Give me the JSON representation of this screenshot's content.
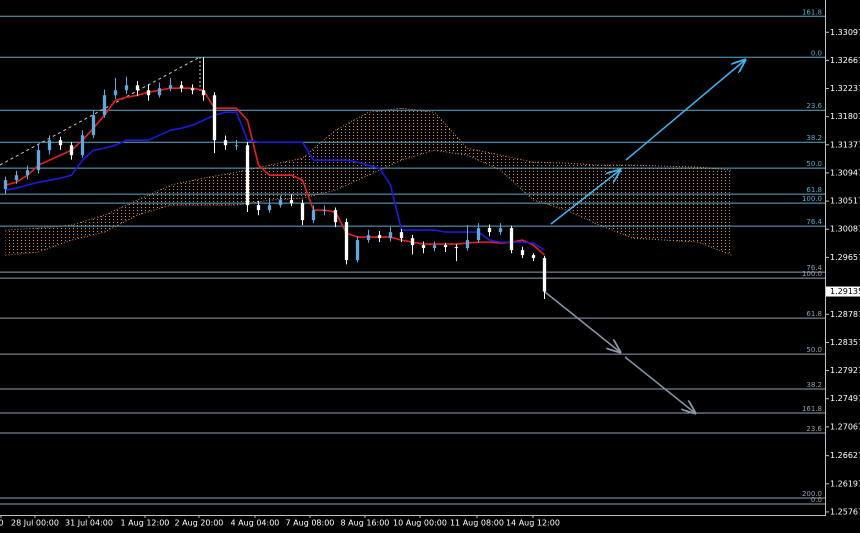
{
  "chart_data": {
    "type": "candlestick",
    "up_color": "#62a8e0",
    "down_color": "#ffffff",
    "xlim": [
      -0.5,
      74.5
    ],
    "ylim": [
      1.2572,
      1.3359
    ],
    "xticks": [
      {
        "value": -0.41,
        "label": "0"
      },
      {
        "value": 2.68,
        "label": "28 Jul 00:00"
      },
      {
        "value": 7.59,
        "label": "31 Jul 04:00"
      },
      {
        "value": 12.68,
        "label": "1 Aug 12:00"
      },
      {
        "value": 17.59,
        "label": "2 Aug 20:00"
      },
      {
        "value": 22.68,
        "label": "4 Aug 04:00"
      },
      {
        "value": 27.68,
        "label": "7 Aug 08:00"
      },
      {
        "value": 32.68,
        "label": "8 Aug 16:00"
      },
      {
        "value": 37.68,
        "label": "10 Aug 00:00"
      },
      {
        "value": 42.86,
        "label": "11 Aug 08:00"
      },
      {
        "value": 47.95,
        "label": "14 Aug 12:00"
      }
    ],
    "yticks": [
      1.33097,
      1.32667,
      1.32237,
      1.31807,
      1.31377,
      1.30947,
      1.30517,
      1.30087,
      1.29657,
      1.28787,
      1.28357,
      1.27927,
      1.27497,
      1.27067,
      1.26627,
      1.26197,
      1.25767
    ],
    "last_price": 1.29135,
    "open": [
      1.307,
      1.30837,
      1.30913,
      1.3099,
      1.31295,
      1.31448,
      1.31371,
      1.31219,
      1.31524,
      1.3183,
      1.32135,
      1.32211,
      1.32288,
      1.32211,
      1.32135,
      1.32242,
      1.32288,
      1.32242,
      1.32211,
      1.32135,
      1.31448,
      1.31371,
      1.31371,
      1.30455,
      1.30379,
      1.30455,
      1.30532,
      1.30486,
      1.30226,
      1.30379,
      1.30379,
      1.30196,
      1.29615,
      1.29921,
      1.29997,
      1.29951,
      1.30043,
      1.29951,
      1.29844,
      1.29799,
      1.29844,
      1.29814,
      1.29799,
      1.29921,
      1.30104,
      1.30043,
      1.30104,
      1.29768,
      1.29692,
      1.29646
    ],
    "high": [
      1.3089,
      1.3098,
      1.3106,
      1.3138,
      1.3152,
      1.315,
      1.3142,
      1.316,
      1.319,
      1.3222,
      1.324,
      1.3242,
      1.3235,
      1.323,
      1.3233,
      1.324,
      1.3235,
      1.323,
      1.32715,
      1.3218,
      1.3152,
      1.3145,
      1.3142,
      1.3052,
      1.3056,
      1.306,
      1.3062,
      1.3054,
      1.3045,
      1.3045,
      1.3042,
      1.3025,
      1.2998,
      1.3008,
      1.3006,
      1.3012,
      1.3009,
      1.3,
      1.299,
      1.299,
      1.2988,
      1.2986,
      1.3015,
      1.3018,
      1.3016,
      1.3018,
      1.3014,
      1.2982,
      1.2972,
      1.2968
    ],
    "low": [
      1.3062,
      1.3078,
      1.3085,
      1.3094,
      1.3123,
      1.313,
      1.3115,
      1.3118,
      1.3148,
      1.3179,
      1.3208,
      1.3215,
      1.3212,
      1.3205,
      1.321,
      1.322,
      1.3218,
      1.3215,
      1.3205,
      1.3125,
      1.313,
      1.313,
      1.3035,
      1.303,
      1.3034,
      1.3042,
      1.3044,
      1.3015,
      1.3018,
      1.303,
      1.3012,
      1.2955,
      1.2958,
      1.2988,
      1.2989,
      1.299,
      1.2989,
      1.297,
      1.2972,
      1.2975,
      1.2974,
      1.296,
      1.2976,
      1.2988,
      1.2998,
      1.3,
      1.2972,
      1.2965,
      1.296,
      1.2902
    ],
    "close": [
      1.30837,
      1.30913,
      1.3099,
      1.31295,
      1.31448,
      1.31371,
      1.31219,
      1.31524,
      1.3183,
      1.32135,
      1.32211,
      1.32288,
      1.32211,
      1.32135,
      1.32242,
      1.32288,
      1.32242,
      1.32211,
      1.32135,
      1.31448,
      1.31371,
      1.31371,
      1.30455,
      1.30379,
      1.30455,
      1.30532,
      1.30486,
      1.30226,
      1.30379,
      1.30379,
      1.30196,
      1.29615,
      1.29921,
      1.29997,
      1.29951,
      1.30043,
      1.29951,
      1.29844,
      1.29799,
      1.29844,
      1.29814,
      1.29799,
      1.29921,
      1.30104,
      1.30043,
      1.30104,
      1.29768,
      1.29692,
      1.29646,
      1.29135
    ],
    "lines": [
      {
        "color": "#e8201f",
        "values": [
          1.30761,
          1.30806,
          1.30913,
          1.31066,
          1.31142,
          1.31219,
          1.31295,
          1.31448,
          1.31631,
          1.3183,
          1.32059,
          1.32104,
          1.32135,
          1.32181,
          1.32211,
          1.32242,
          1.32242,
          1.32242,
          1.32211,
          1.31936,
          1.31936,
          1.31936,
          1.31753,
          1.31066,
          1.30913,
          1.30913,
          1.30913,
          1.30837,
          1.30379,
          1.30379,
          1.30348,
          1.30028,
          1.29967,
          1.29967,
          1.29967,
          1.29967,
          1.29921,
          1.2989,
          1.2986,
          1.2986,
          1.2986,
          1.2986,
          1.29875,
          1.2989,
          1.2989,
          1.29875,
          1.2989,
          1.29921,
          1.29844,
          1.29692
        ]
      },
      {
        "color": "#1a1ae0",
        "values": [
          1.30684,
          1.30715,
          1.30761,
          1.30806,
          1.30837,
          1.30868,
          1.30913,
          1.31142,
          1.31295,
          1.31326,
          1.31371,
          1.31448,
          1.31448,
          1.31448,
          1.31524,
          1.31601,
          1.31631,
          1.31677,
          1.31753,
          1.3183,
          1.31875,
          1.31875,
          1.31448,
          1.31417,
          1.31417,
          1.31417,
          1.31417,
          1.31417,
          1.31142,
          1.31142,
          1.31142,
          1.31142,
          1.31112,
          1.31066,
          1.3102,
          1.30761,
          1.30074,
          1.30074,
          1.30074,
          1.30074,
          1.30043,
          1.30043,
          1.30043,
          1.30043,
          1.29921,
          1.2989,
          1.2989,
          1.2989,
          1.29875,
          1.29768
        ]
      }
    ],
    "cloud": {
      "color": "#d98c4a",
      "x": [
        0,
        3,
        6,
        9,
        12,
        15,
        18,
        21,
        24,
        27,
        30,
        33,
        36,
        39,
        42,
        45,
        48,
        51,
        54,
        57,
        60,
        63,
        66
      ],
      "span_a": [
        1.30074,
        1.30104,
        1.3015,
        1.30303,
        1.30532,
        1.30761,
        1.30868,
        1.30959,
        1.31066,
        1.31173,
        1.31601,
        1.31875,
        1.31936,
        1.31875,
        1.31326,
        1.31219,
        1.31112,
        1.31097,
        1.31066,
        1.31066,
        1.31051,
        1.31036,
        1.3099
      ],
      "span_b": [
        1.29692,
        1.29738,
        1.29921,
        1.30043,
        1.30303,
        1.30455,
        1.30455,
        1.30455,
        1.30532,
        1.30562,
        1.30684,
        1.30913,
        1.31142,
        1.31295,
        1.31219,
        1.3099,
        1.30532,
        1.30379,
        1.3015,
        1.29951,
        1.29921,
        1.2989,
        1.29692
      ]
    },
    "fibs": [
      {
        "color": "#5fa9cc",
        "levels": [
          {
            "label": "161.8",
            "value": 1.33341
          },
          {
            "label": "0.0",
            "value": 1.32715
          },
          {
            "label": "23.6",
            "value": 1.31906
          },
          {
            "label": "38.2",
            "value": 1.31417
          },
          {
            "label": "50.0",
            "value": 1.3102
          },
          {
            "label": "61.8",
            "value": 1.30623
          },
          {
            "label": "100.0",
            "value": 1.30486
          },
          {
            "label": "76.4",
            "value": 1.30134
          }
        ]
      },
      {
        "color": "#8fa0b0",
        "levels": [
          {
            "label": "76.4",
            "value": 1.29432
          },
          {
            "label": "100.0",
            "value": 1.2934
          },
          {
            "label": "61.8",
            "value": 1.28729
          },
          {
            "label": "50.0",
            "value": 1.28179
          },
          {
            "label": "38.2",
            "value": 1.27645
          },
          {
            "label": "161.8",
            "value": 1.27278
          },
          {
            "label": "23.6",
            "value": 1.26973
          },
          {
            "label": "200.0",
            "value": 1.2598
          },
          {
            "label": "0.0",
            "value": 1.25889
          }
        ]
      }
    ]
  }
}
